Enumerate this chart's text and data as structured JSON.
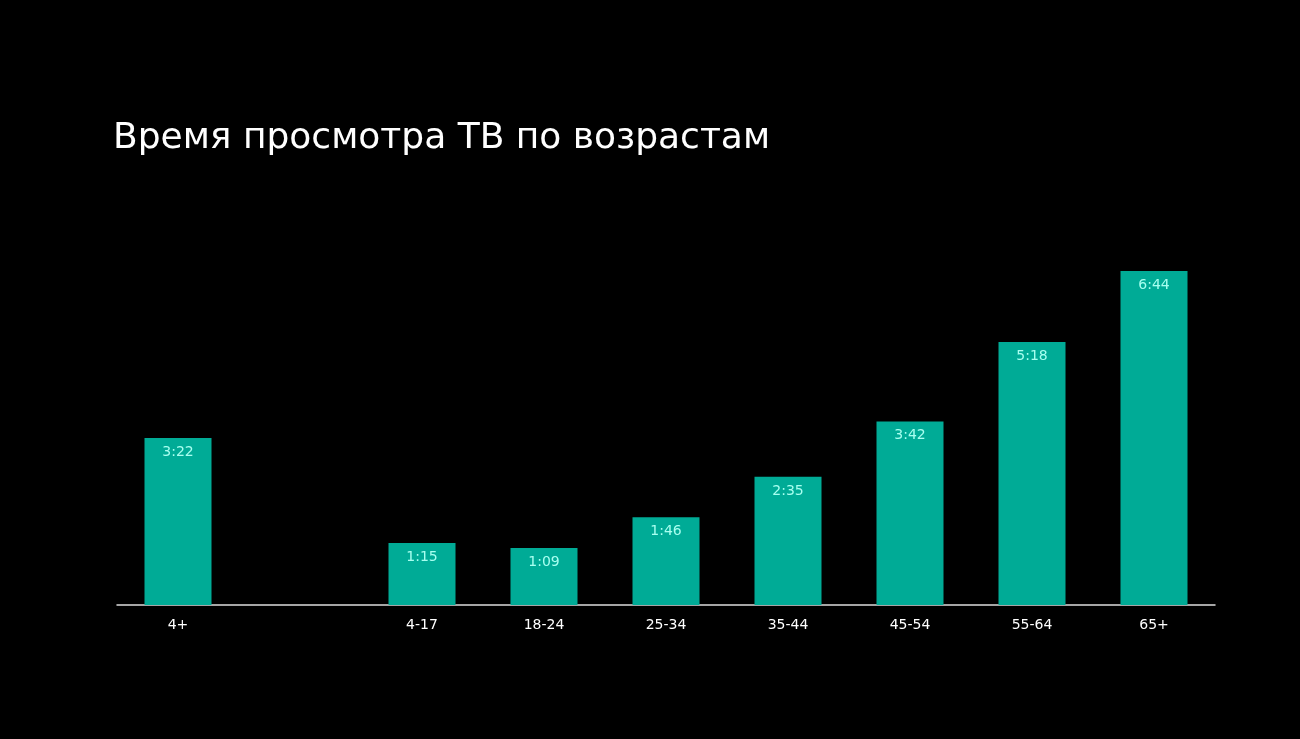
{
  "chart_data": {
    "type": "bar",
    "title": "Время просмотра ТВ по возрастам",
    "categories": [
      "4+",
      null,
      "4-17",
      "18-24",
      "25-34",
      "35-44",
      "45-54",
      "55-64",
      "65+"
    ],
    "values": [
      202,
      null,
      75,
      69,
      106,
      155,
      222,
      318,
      404
    ],
    "value_labels": [
      "3:22",
      null,
      "1:15",
      "1:09",
      "1:46",
      "2:35",
      "3:42",
      "5:18",
      "6:44"
    ],
    "color": "#00ab96"
  }
}
